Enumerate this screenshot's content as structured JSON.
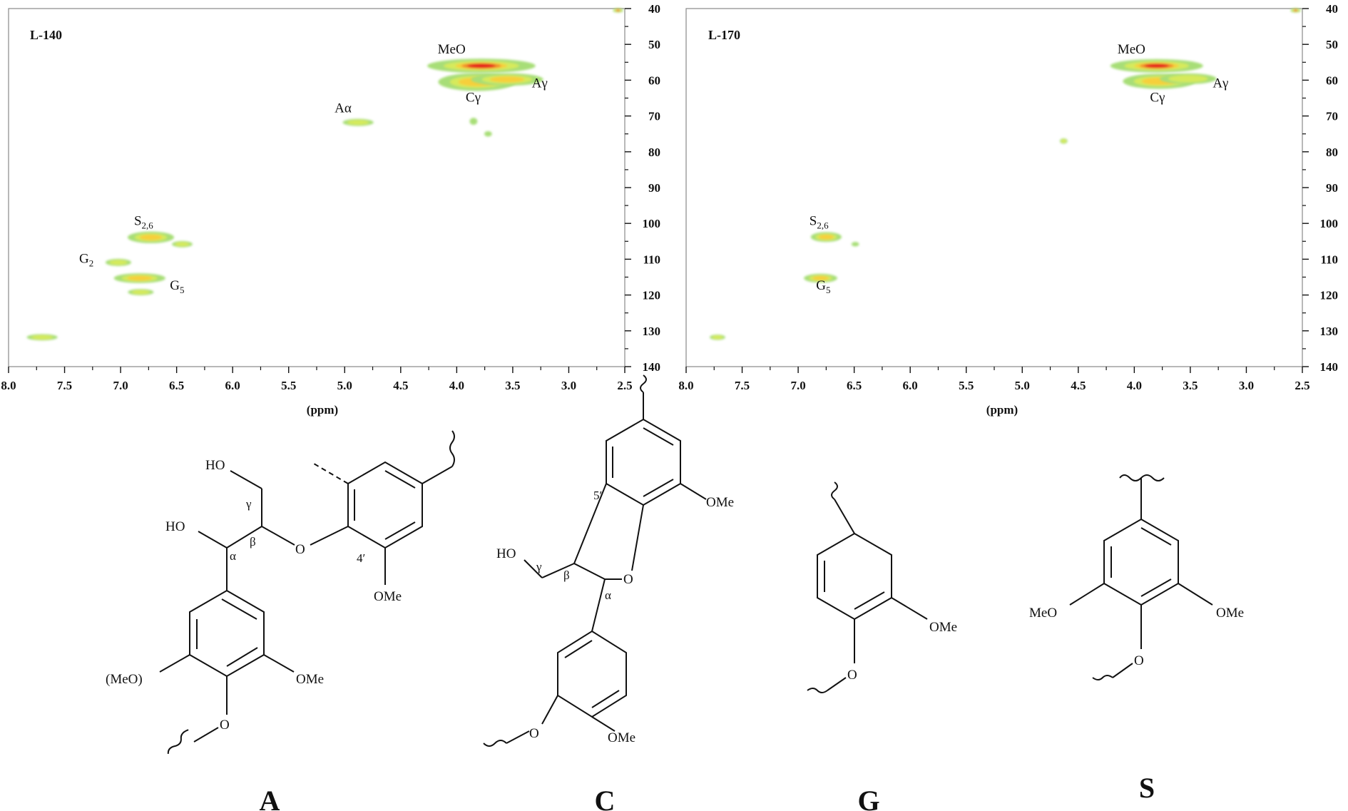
{
  "chart_data": [
    {
      "type": "heatmap",
      "panel_label": "L-140",
      "xlabel": "(ppm)",
      "ylabel": "",
      "xlim": [
        8.0,
        2.5
      ],
      "ylim": [
        140,
        40
      ],
      "x_ticks": [
        "8.0",
        "7.5",
        "7.0",
        "6.5",
        "6.0",
        "5.5",
        "5.0",
        "4.5",
        "4.0",
        "3.5",
        "3.0",
        "2.5"
      ],
      "y_ticks": [
        "40",
        "50",
        "60",
        "70",
        "80",
        "90",
        "100",
        "110",
        "120",
        "130",
        "140"
      ],
      "grid": false,
      "peaks": [
        {
          "label": "MeO",
          "x": 3.78,
          "y": 56.0,
          "wx": 0.42,
          "wy": 1.6,
          "intensity": 1.0
        },
        {
          "label": "Cγ",
          "x": 3.82,
          "y": 60.5,
          "wx": 0.3,
          "wy": 2.0,
          "intensity": 0.75
        },
        {
          "label": "Aγ",
          "x": 3.55,
          "y": 59.8,
          "wx": 0.28,
          "wy": 1.4,
          "intensity": 0.55
        },
        {
          "label": "Aα",
          "x": 4.88,
          "y": 71.8,
          "wx": 0.12,
          "wy": 0.8,
          "intensity": 0.4
        },
        {
          "label": "S2,6",
          "x": 6.73,
          "y": 103.9,
          "wx": 0.18,
          "wy": 1.3,
          "intensity": 0.7
        },
        {
          "label": "G2",
          "x": 7.02,
          "y": 110.9,
          "wx": 0.1,
          "wy": 0.8,
          "intensity": 0.4
        },
        {
          "label": "G5",
          "x": 6.83,
          "y": 115.3,
          "wx": 0.2,
          "wy": 1.1,
          "intensity": 0.75
        },
        {
          "label": "",
          "x": 7.7,
          "y": 131.8,
          "wx": 0.12,
          "wy": 0.7,
          "intensity": 0.4
        },
        {
          "label": "",
          "x": 6.82,
          "y": 119.2,
          "wx": 0.1,
          "wy": 0.7,
          "intensity": 0.35
        },
        {
          "label": "",
          "x": 6.45,
          "y": 105.8,
          "wx": 0.08,
          "wy": 0.7,
          "intensity": 0.35
        },
        {
          "label": "",
          "x": 3.85,
          "y": 71.5,
          "wx": 0.03,
          "wy": 0.8,
          "intensity": 0.3
        },
        {
          "label": "",
          "x": 3.72,
          "y": 75.0,
          "wx": 0.03,
          "wy": 0.6,
          "intensity": 0.3
        },
        {
          "label": "",
          "x": 2.56,
          "y": 40.5,
          "wx": 0.04,
          "wy": 0.4,
          "intensity": 0.9
        }
      ],
      "peak_labels": [
        {
          "key": "MeO",
          "text": "MeO",
          "sub": "",
          "x": 4.17,
          "y": 52.5
        },
        {
          "key": "Cg",
          "text": "Cγ",
          "sub": "",
          "x": 3.92,
          "y": 66.0
        },
        {
          "key": "Ag",
          "text": "Aγ",
          "sub": "",
          "x": 3.33,
          "y": 62.0
        },
        {
          "key": "Aa",
          "text": "Aα",
          "sub": "",
          "x": 5.09,
          "y": 69.0
        },
        {
          "key": "S26",
          "text": "S",
          "sub": "2,6",
          "x": 6.88,
          "y": 100.5
        },
        {
          "key": "G2",
          "text": "G",
          "sub": "2",
          "x": 7.37,
          "y": 111.0
        },
        {
          "key": "G5",
          "text": "G",
          "sub": "5",
          "x": 6.56,
          "y": 118.5
        }
      ]
    },
    {
      "type": "heatmap",
      "panel_label": "L-170",
      "xlabel": "(ppm)",
      "ylabel": "",
      "xlim": [
        8.0,
        2.5
      ],
      "ylim": [
        140,
        40
      ],
      "x_ticks": [
        "8.0",
        "7.5",
        "7.0",
        "6.5",
        "6.0",
        "5.5",
        "5.0",
        "4.5",
        "4.0",
        "3.5",
        "3.0",
        "2.5"
      ],
      "y_ticks": [
        "40",
        "50",
        "60",
        "70",
        "80",
        "90",
        "100",
        "110",
        "120",
        "130",
        "140"
      ],
      "grid": false,
      "peaks": [
        {
          "label": "MeO",
          "x": 3.8,
          "y": 56.0,
          "wx": 0.36,
          "wy": 1.5,
          "intensity": 1.0
        },
        {
          "label": "Cγ",
          "x": 3.78,
          "y": 60.3,
          "wx": 0.28,
          "wy": 1.7,
          "intensity": 0.65
        },
        {
          "label": "Aγ",
          "x": 3.52,
          "y": 59.6,
          "wx": 0.22,
          "wy": 1.2,
          "intensity": 0.45
        },
        {
          "label": "S2,6",
          "x": 6.75,
          "y": 103.8,
          "wx": 0.12,
          "wy": 1.1,
          "intensity": 0.6
        },
        {
          "label": "G5",
          "x": 6.8,
          "y": 115.3,
          "wx": 0.13,
          "wy": 1.0,
          "intensity": 0.7
        },
        {
          "label": "",
          "x": 4.63,
          "y": 77.0,
          "wx": 0.03,
          "wy": 0.6,
          "intensity": 0.4
        },
        {
          "label": "",
          "x": 7.72,
          "y": 131.8,
          "wx": 0.06,
          "wy": 0.6,
          "intensity": 0.35
        },
        {
          "label": "",
          "x": 6.49,
          "y": 105.8,
          "wx": 0.03,
          "wy": 0.5,
          "intensity": 0.3
        },
        {
          "label": "",
          "x": 2.56,
          "y": 40.5,
          "wx": 0.04,
          "wy": 0.4,
          "intensity": 0.9
        }
      ],
      "peak_labels": [
        {
          "key": "MeO",
          "text": "MeO",
          "sub": "",
          "x": 4.15,
          "y": 52.5
        },
        {
          "key": "Cg",
          "text": "Cγ",
          "sub": "",
          "x": 3.86,
          "y": 66.0
        },
        {
          "key": "Ag",
          "text": "Aγ",
          "sub": "",
          "x": 3.3,
          "y": 62.0
        },
        {
          "key": "S26",
          "text": "S",
          "sub": "2,6",
          "x": 6.9,
          "y": 100.5
        },
        {
          "key": "G5",
          "text": "G",
          "sub": "5",
          "x": 6.84,
          "y": 118.5
        }
      ]
    }
  ],
  "structures": {
    "A": {
      "letter": "A",
      "atoms": {
        "ho_top": "HO",
        "ho_mid": "HO",
        "o_ether": "O",
        "o_bottom": "O",
        "ome_right": "OMe",
        "ome_ring": "OMe",
        "meo_paren": "(MeO)"
      },
      "positions": {
        "gamma": "γ",
        "beta": "β",
        "alpha": "α",
        "four_prime": "4′"
      }
    },
    "C": {
      "letter": "C",
      "atoms": {
        "ho": "HO",
        "o_ring": "O",
        "o_bottom": "O",
        "ome_top": "OMe",
        "ome_bottom": "OMe"
      },
      "positions": {
        "gamma": "γ",
        "beta": "β",
        "alpha": "α",
        "five_prime": "5′"
      }
    },
    "G": {
      "letter": "G",
      "atoms": {
        "o": "O",
        "ome": "OMe"
      }
    },
    "S": {
      "letter": "S",
      "atoms": {
        "o": "O",
        "meo": "MeO",
        "ome": "OMe"
      }
    }
  }
}
